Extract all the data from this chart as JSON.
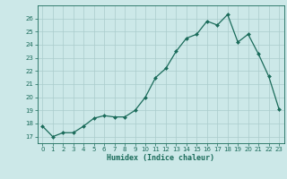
{
  "x": [
    0,
    1,
    2,
    3,
    4,
    5,
    6,
    7,
    8,
    9,
    10,
    11,
    12,
    13,
    14,
    15,
    16,
    17,
    18,
    19,
    20,
    21,
    22,
    23
  ],
  "y": [
    17.8,
    17.0,
    17.3,
    17.3,
    17.8,
    18.4,
    18.6,
    18.5,
    18.5,
    19.0,
    20.0,
    21.5,
    22.2,
    23.5,
    24.5,
    24.8,
    25.8,
    25.5,
    26.3,
    24.2,
    24.8,
    23.3,
    21.6,
    19.1
  ],
  "xlabel": "Humidex (Indice chaleur)",
  "bg_color": "#cce8e8",
  "grid_color": "#aacccc",
  "line_color": "#1a6b5a",
  "ylim": [
    16.5,
    27.0
  ],
  "xlim": [
    -0.5,
    23.5
  ],
  "yticks": [
    17,
    18,
    19,
    20,
    21,
    22,
    23,
    24,
    25,
    26
  ],
  "xticks": [
    0,
    1,
    2,
    3,
    4,
    5,
    6,
    7,
    8,
    9,
    10,
    11,
    12,
    13,
    14,
    15,
    16,
    17,
    18,
    19,
    20,
    21,
    22,
    23
  ]
}
